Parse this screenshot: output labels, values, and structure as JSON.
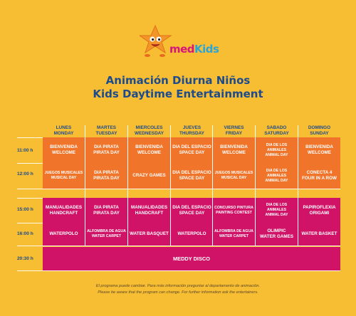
{
  "logo": {
    "brand_m": "med",
    "brand_k": "Kids"
  },
  "title": {
    "es": "Animación Diurna Niños",
    "en": "Kids Daytime Entertainment"
  },
  "days": [
    {
      "es": "LUNES",
      "en": "MONDAY"
    },
    {
      "es": "MARTES",
      "en": "TUESDAY"
    },
    {
      "es": "MIERCOLES",
      "en": "WEDNESDAY"
    },
    {
      "es": "JUEVES",
      "en": "THURSDAY"
    },
    {
      "es": "VIERNES",
      "en": "FRIDAY"
    },
    {
      "es": "SABADO",
      "en": "SATURDAY"
    },
    {
      "es": "DOMINGO",
      "en": "SUNDAY"
    }
  ],
  "times": [
    "11:00 h",
    "12:00 h",
    "15:00 h",
    "16:00 h",
    "20:30 h"
  ],
  "rows": [
    {
      "cells": [
        {
          "l1": "BIENVENIDA",
          "l2": "WELCOME"
        },
        {
          "l1": "DIA PIRATA",
          "l2": "PIRATA DAY"
        },
        {
          "l1": "BIENVENIDA",
          "l2": "WELCOME"
        },
        {
          "l1": "DIA DEL ESPACIO",
          "l2": "SPACE DAY"
        },
        {
          "l1": "BIENVENIDA",
          "l2": "WELCOME"
        },
        {
          "l1": "DIA DE LOS ANIMALES",
          "l2": "ANIMAL DAY"
        },
        {
          "l1": "BIENVENIDA",
          "l2": "WELCOME"
        }
      ]
    },
    {
      "cells": [
        {
          "l1": "JUEGOS MUSICALES",
          "l2": "MUSICAL DAY"
        },
        {
          "l1": "DIA PIRATA",
          "l2": "PIRATA DAY"
        },
        {
          "l1": "CRAZY GAMES",
          "l2": ""
        },
        {
          "l1": "DIA DEL ESPACIO",
          "l2": "SPACE DAY"
        },
        {
          "l1": "JUEGOS MUSICALES",
          "l2": "MUSICAL DAY"
        },
        {
          "l1": "DIA DE LOS ANIMALES",
          "l2": "ANIMAL DAY"
        },
        {
          "l1": "CONECTA 4",
          "l2": "FOUR IN A ROW"
        }
      ]
    },
    {
      "cells": [
        {
          "l1": "MANUALIDADES",
          "l2": "HANDCRAFT"
        },
        {
          "l1": "DIA PIRATA",
          "l2": "PIRATA DAY"
        },
        {
          "l1": "MANUALIDADES",
          "l2": "HANDCRAFT"
        },
        {
          "l1": "DIA DEL ESPACIO",
          "l2": "SPACE DAY"
        },
        {
          "l1": "CONCURSO PINTURA",
          "l2": "PAINTING CONTEST"
        },
        {
          "l1": "DIA DE LOS ANIMALES",
          "l2": "ANIMAL DAY"
        },
        {
          "l1": "PAPIROFLEXIA",
          "l2": "ORIGAMI"
        }
      ]
    },
    {
      "cells": [
        {
          "l1": "WATERPOLO",
          "l2": ""
        },
        {
          "l1": "ALFOMBRA DE AGUA",
          "l2": "WATER CARPET"
        },
        {
          "l1": "WATER BASQUET",
          "l2": ""
        },
        {
          "l1": "WATERPOLO",
          "l2": ""
        },
        {
          "l1": "ALFOMBRA DE AGUA",
          "l2": "WATER CARPET"
        },
        {
          "l1": "OLIMPIC",
          "l2": "WATER GAMES"
        },
        {
          "l1": "WATER BASKET",
          "l2": ""
        }
      ]
    }
  ],
  "evening": "MEDDY DISCO",
  "footer": {
    "es": "El programa puede cambiar. Para más información preguntar  al departamento de animación.",
    "en": "Please be aware that the program can change. For further information ask the entertainers."
  },
  "colors": {
    "background": "#f7bd33",
    "morning": "#f0752b",
    "afternoon": "#d01367",
    "title": "#1c4b8e"
  }
}
